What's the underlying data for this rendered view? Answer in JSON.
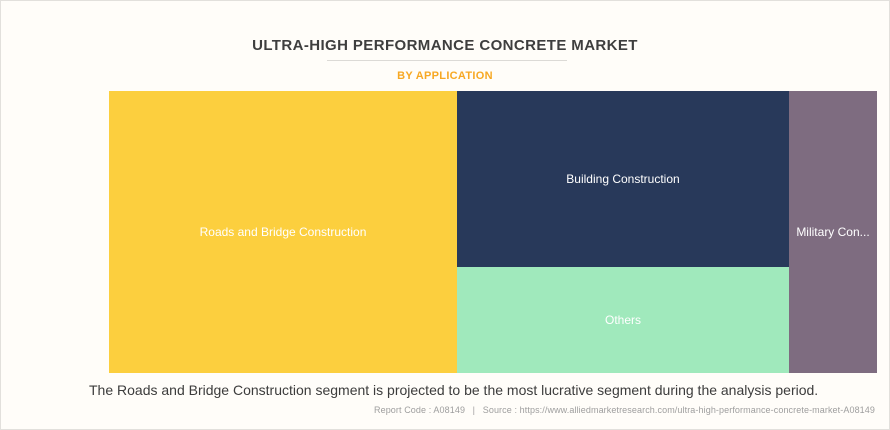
{
  "header": {
    "title": "ULTRA-HIGH PERFORMANCE CONCRETE MARKET",
    "subtitle": "BY APPLICATION"
  },
  "chart_data": {
    "type": "treemap",
    "title": "ULTRA-HIGH PERFORMANCE CONCRETE MARKET",
    "subtitle": "BY APPLICATION",
    "legend_position": "none",
    "value_labels_shown": false,
    "segments": [
      {
        "label": "Roads and Bridge Construction",
        "share_pct_est": 45,
        "color": "#FCCF3E",
        "text_color": "#FFFFFF"
      },
      {
        "label": "Building Construction",
        "share_pct_est": 27,
        "color": "#28395A",
        "text_color": "#FFFFFF"
      },
      {
        "label": "Others",
        "share_pct_est": 16,
        "color": "#A0E9BC",
        "text_color": "#FFFFFF"
      },
      {
        "label": "Military Con...",
        "share_pct_est": 12,
        "color": "#7E6C80",
        "text_color": "#FFFFFF"
      }
    ]
  },
  "caption": "The Roads and Bridge Construction segment is projected to be the most lucrative segment during the analysis period.",
  "footer": {
    "report_code": "Report Code : A08149",
    "separator": "|",
    "source": "Source : https://www.alliedmarketresearch.com/ultra-high-performance-concrete-market-A08149"
  },
  "colors": {
    "background": "#FFFDF9",
    "accent_orange": "#F7A823",
    "title_text": "#3E3E3E",
    "caption_text": "#3C3C3C",
    "footer_text": "#9E9E9E"
  }
}
